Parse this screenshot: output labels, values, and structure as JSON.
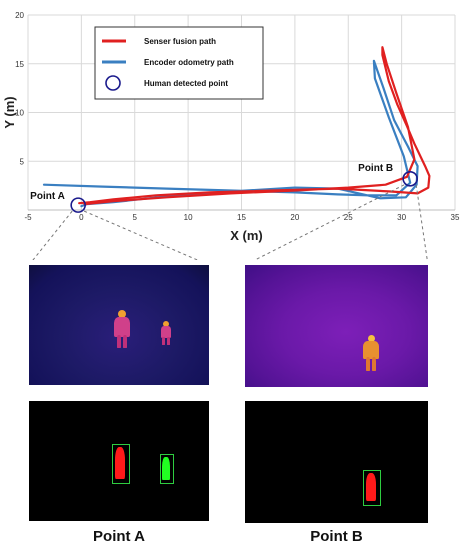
{
  "chart_data": {
    "type": "line",
    "xlabel": "X (m)",
    "ylabel": "Y (m)",
    "xlim": [
      -5,
      35
    ],
    "ylim": [
      0,
      20
    ],
    "xticks": [
      "-5",
      "0",
      "5",
      "10",
      "15",
      "20",
      "25",
      "30",
      "35"
    ],
    "yticks": [
      "5",
      "10",
      "15",
      "20"
    ],
    "grid": true,
    "legend_position": "top-left",
    "series": [
      {
        "name": "Senser fusion path",
        "color": "#e02020",
        "x": [
          0.3,
          3,
          8,
          14,
          20,
          25,
          28.5,
          30.5,
          31.2,
          30.6,
          29.5,
          28.6,
          28.2,
          28.2,
          28.8,
          29.6,
          30.5,
          31.2,
          32.2,
          32.6,
          32.5,
          31.5,
          29,
          24,
          18,
          12,
          7,
          3,
          0.8,
          -0.2
        ],
        "y": [
          0.6,
          0.9,
          1.3,
          1.7,
          2.0,
          2.3,
          2.6,
          3.4,
          5.2,
          8.5,
          12,
          15,
          16.7,
          15.9,
          13.2,
          10.8,
          8.6,
          6.8,
          4.5,
          3.5,
          2.3,
          1.7,
          1.9,
          2.2,
          2.0,
          1.8,
          1.5,
          1.1,
          0.8,
          0.7
        ]
      },
      {
        "name": "Encoder odometry path",
        "color": "#3a7fc1",
        "x": [
          -3.5,
          2,
          8,
          14,
          20,
          24,
          27,
          29.5,
          30.8,
          30.2,
          28.8,
          27.5,
          27.4,
          28.3,
          29.3,
          30.6,
          31.5,
          31.4,
          30.4,
          28,
          24,
          20,
          14,
          8,
          3,
          0.5,
          0
        ],
        "y": [
          2.6,
          2.4,
          2.2,
          2.0,
          1.8,
          1.6,
          1.5,
          1.5,
          2.8,
          5.5,
          9.5,
          13.5,
          15.3,
          12.5,
          9.2,
          6.5,
          4.5,
          2.6,
          1.3,
          1.2,
          2.2,
          2.3,
          1.9,
          1.4,
          0.8,
          0.6,
          0.4
        ]
      }
    ],
    "legend_marker": {
      "name": "Human detected point",
      "color": "#1a1a8c"
    },
    "detected_points": [
      {
        "label": "Point A",
        "x": -0.3,
        "y": 0.5
      },
      {
        "label": "Point B",
        "x": 30.8,
        "y": 3.2
      }
    ]
  },
  "captions": {
    "point_a": "Point A",
    "point_b": "Point B"
  }
}
